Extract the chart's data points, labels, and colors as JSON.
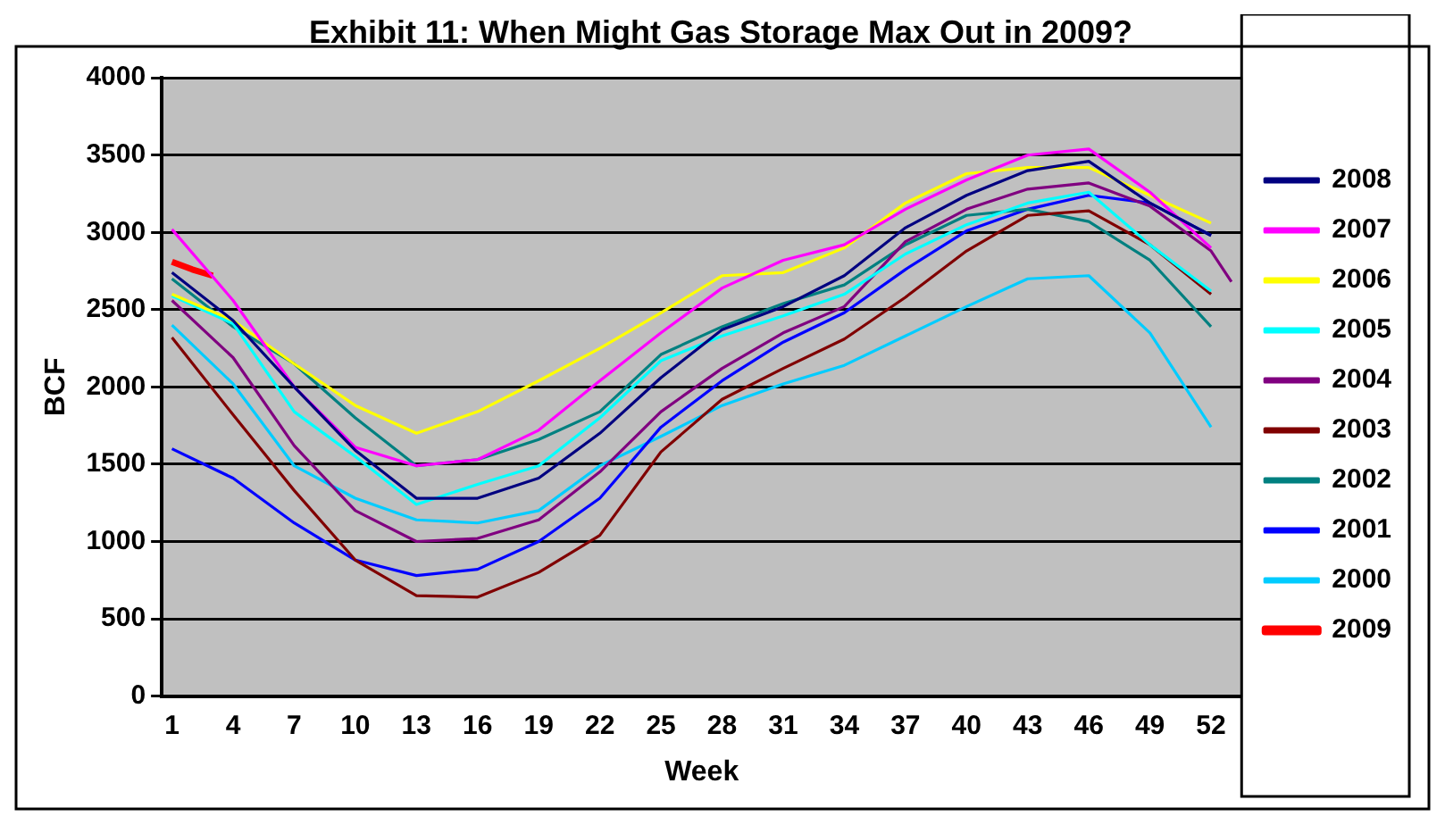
{
  "chart_data": {
    "type": "line",
    "title": "Exhibit 11: When Might Gas Storage Max Out in 2009?",
    "xlabel": "Week",
    "ylabel": "BCF",
    "x": [
      1,
      4,
      7,
      10,
      13,
      16,
      19,
      22,
      25,
      28,
      31,
      34,
      37,
      40,
      43,
      46,
      49,
      52
    ],
    "xlim": [
      0.5,
      53.5
    ],
    "xticks": [
      1,
      4,
      7,
      10,
      13,
      16,
      19,
      22,
      25,
      28,
      31,
      34,
      37,
      40,
      43,
      46,
      49,
      52
    ],
    "ylim": [
      0,
      4000
    ],
    "yticks": [
      0,
      500,
      1000,
      1500,
      2000,
      2500,
      3000,
      3500,
      4000
    ],
    "grid": "y",
    "legend": "right",
    "marker": "none",
    "line_style": "solid",
    "series": [
      {
        "name": "2008",
        "color": "#000080",
        "values": [
          2740,
          2430,
          2000,
          1590,
          1280,
          1280,
          1410,
          1700,
          2060,
          2370,
          2520,
          2720,
          3030,
          3240,
          3400,
          3460,
          3190,
          2980
        ]
      },
      {
        "name": "2007",
        "color": "#ff00ff",
        "values": [
          3020,
          2560,
          2000,
          1610,
          1490,
          1530,
          1720,
          2040,
          2350,
          2640,
          2820,
          2920,
          3150,
          3340,
          3500,
          3540,
          3260,
          2900
        ]
      },
      {
        "name": "2006",
        "color": "#ffff00",
        "values": [
          2600,
          2430,
          2150,
          1880,
          1700,
          1840,
          2040,
          2250,
          2480,
          2720,
          2740,
          2900,
          3190,
          3380,
          3420,
          3420,
          3240,
          3060
        ]
      },
      {
        "name": "2005",
        "color": "#00ffff",
        "values": [
          2590,
          2410,
          1840,
          1550,
          1240,
          1370,
          1490,
          1800,
          2170,
          2330,
          2460,
          2600,
          2860,
          3050,
          3190,
          3260,
          2920,
          2620
        ]
      },
      {
        "name": "2004",
        "color": "#800080",
        "x": [
          1,
          4,
          7,
          10,
          13,
          16,
          19,
          22,
          25,
          28,
          31,
          34,
          37,
          40,
          43,
          46,
          49,
          52,
          53
        ],
        "values": [
          2560,
          2190,
          1620,
          1200,
          1000,
          1020,
          1140,
          1450,
          1840,
          2120,
          2350,
          2520,
          2940,
          3150,
          3280,
          3320,
          3170,
          2880,
          2680
        ]
      },
      {
        "name": "2003",
        "color": "#800000",
        "values": [
          2320,
          1820,
          1330,
          880,
          650,
          640,
          800,
          1040,
          1580,
          1920,
          2120,
          2310,
          2580,
          2880,
          3110,
          3140,
          2920,
          2600
        ]
      },
      {
        "name": "2002",
        "color": "#008080",
        "values": [
          2700,
          2390,
          2150,
          1800,
          1490,
          1530,
          1660,
          1840,
          2210,
          2390,
          2540,
          2660,
          2920,
          3110,
          3150,
          3070,
          2820,
          2390
        ]
      },
      {
        "name": "2001",
        "color": "#0000ff",
        "values": [
          1600,
          1410,
          1120,
          880,
          780,
          820,
          1000,
          1280,
          1740,
          2040,
          2290,
          2480,
          2760,
          3010,
          3150,
          3240,
          3190,
          2980
        ]
      },
      {
        "name": "2000",
        "color": "#00ccff",
        "values": [
          2400,
          2020,
          1490,
          1280,
          1140,
          1120,
          1200,
          1490,
          1680,
          1880,
          2020,
          2140,
          2330,
          2520,
          2700,
          2720,
          2350,
          1740
        ]
      },
      {
        "name": "2009",
        "color": "#ff0000",
        "x": [
          1,
          2,
          3
        ],
        "values": [
          2810,
          2760,
          2720
        ]
      }
    ]
  }
}
